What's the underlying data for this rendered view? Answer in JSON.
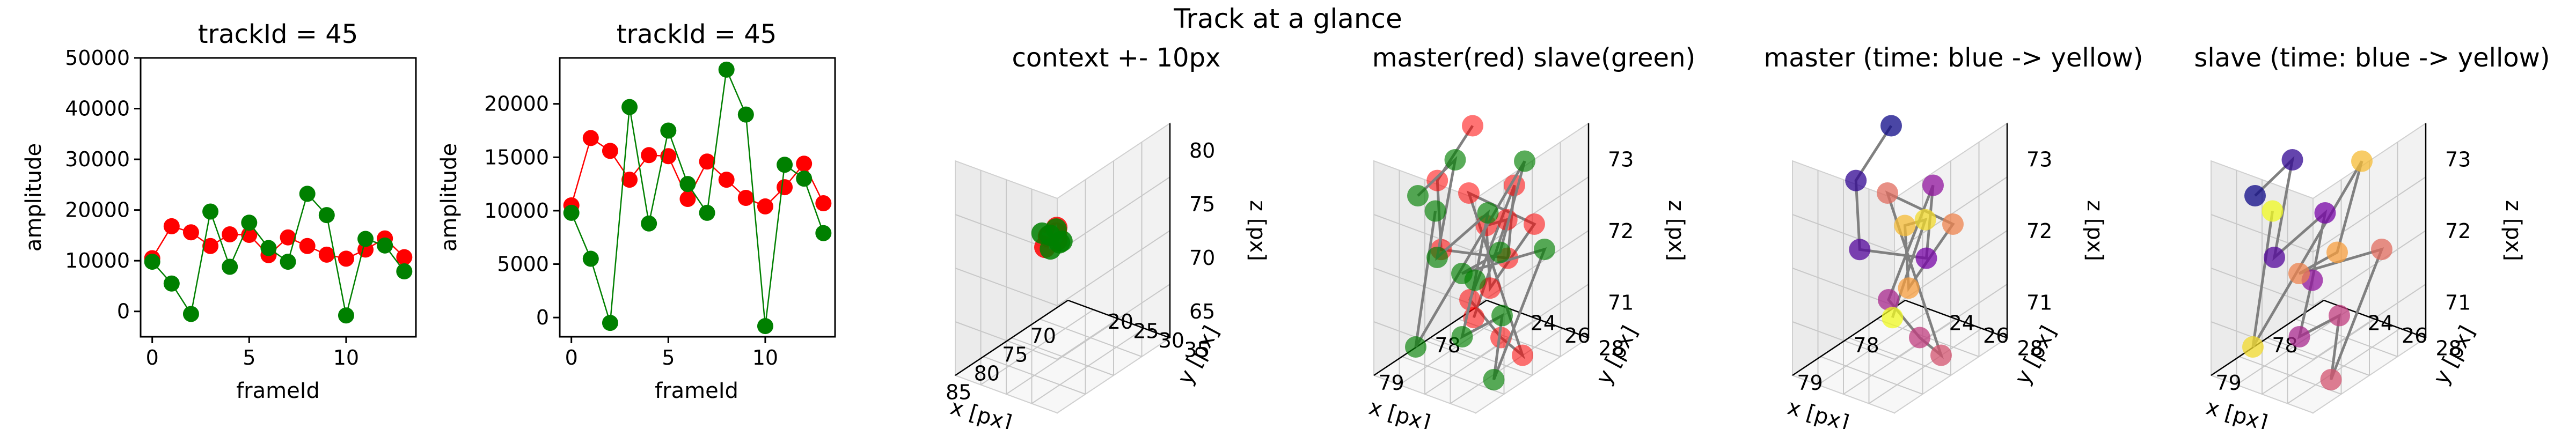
{
  "figure": {
    "suptitle": "Track at a glance"
  },
  "chart_data": [
    {
      "type": "line",
      "title": "trackId = 45",
      "xlabel": "frameId",
      "ylabel": "amplitude",
      "xlim": [
        -0.6,
        13.6
      ],
      "ylim": [
        -5000,
        50000
      ],
      "xticks": [
        0,
        5,
        10
      ],
      "yticks": [
        0,
        10000,
        20000,
        30000,
        40000,
        50000
      ],
      "x": [
        0,
        1,
        2,
        3,
        4,
        5,
        6,
        7,
        8,
        9,
        10,
        11,
        12,
        13
      ],
      "series": [
        {
          "color": "#ff0000",
          "values": [
            10500,
            16800,
            15600,
            12900,
            15200,
            15100,
            11100,
            14600,
            12900,
            11200,
            10400,
            12200,
            14400,
            10700
          ]
        },
        {
          "color": "#008000",
          "values": [
            9800,
            5500,
            -500,
            19700,
            8800,
            17500,
            12500,
            9800,
            23200,
            19000,
            -800,
            14300,
            13000,
            7900
          ]
        }
      ]
    },
    {
      "type": "line",
      "title": "trackId = 45",
      "xlabel": "frameId",
      "ylabel": "amplitude",
      "xlim": [
        -0.6,
        13.6
      ],
      "ylim": [
        -1800,
        24300
      ],
      "xticks": [
        0,
        5,
        10
      ],
      "yticks": [
        0,
        5000,
        10000,
        15000,
        20000
      ],
      "x": [
        0,
        1,
        2,
        3,
        4,
        5,
        6,
        7,
        8,
        9,
        10,
        11,
        12,
        13
      ],
      "series": [
        {
          "color": "#ff0000",
          "values": [
            10500,
            16800,
            15600,
            12900,
            15200,
            15100,
            11100,
            14600,
            12900,
            11200,
            10400,
            12200,
            14400,
            10700
          ]
        },
        {
          "color": "#008000",
          "values": [
            9800,
            5500,
            -500,
            19700,
            8800,
            17500,
            12500,
            9800,
            23200,
            19000,
            -800,
            14300,
            13000,
            7900
          ]
        }
      ]
    },
    {
      "type": "scatter3d",
      "title": "context +- 10px",
      "xlabel": "x [px]",
      "ylabel": "y [px]",
      "zlabel": "z [px]",
      "xticks": [
        "70",
        "75",
        "80",
        "85"
      ],
      "yticks": [
        "20",
        "25",
        "30",
        "35"
      ],
      "zticks": [
        "65",
        "70",
        "75",
        "80"
      ]
    },
    {
      "type": "scatter3d",
      "title": "master(red) slave(green)",
      "xlabel": "x [px]",
      "ylabel": "y [px]",
      "zlabel": "z [px]",
      "xticks": [
        "78",
        "79"
      ],
      "yticks": [
        "24",
        "26",
        "28"
      ],
      "zticks": [
        "71",
        "72",
        "73"
      ]
    },
    {
      "type": "scatter3d",
      "title": "master (time: blue -> yellow)",
      "xlabel": "x [px]",
      "ylabel": "y [px]",
      "zlabel": "z [px]",
      "xticks": [
        "78",
        "79"
      ],
      "yticks": [
        "24",
        "26",
        "28"
      ],
      "zticks": [
        "71",
        "72",
        "73"
      ]
    },
    {
      "type": "scatter3d",
      "title": "slave (time: blue -> yellow)",
      "xlabel": "x [px]",
      "ylabel": "y [px]",
      "zlabel": "z [px]",
      "xticks": [
        "78",
        "79"
      ],
      "yticks": [
        "24",
        "26",
        "28"
      ],
      "zticks": [
        "71",
        "72",
        "73"
      ]
    }
  ]
}
